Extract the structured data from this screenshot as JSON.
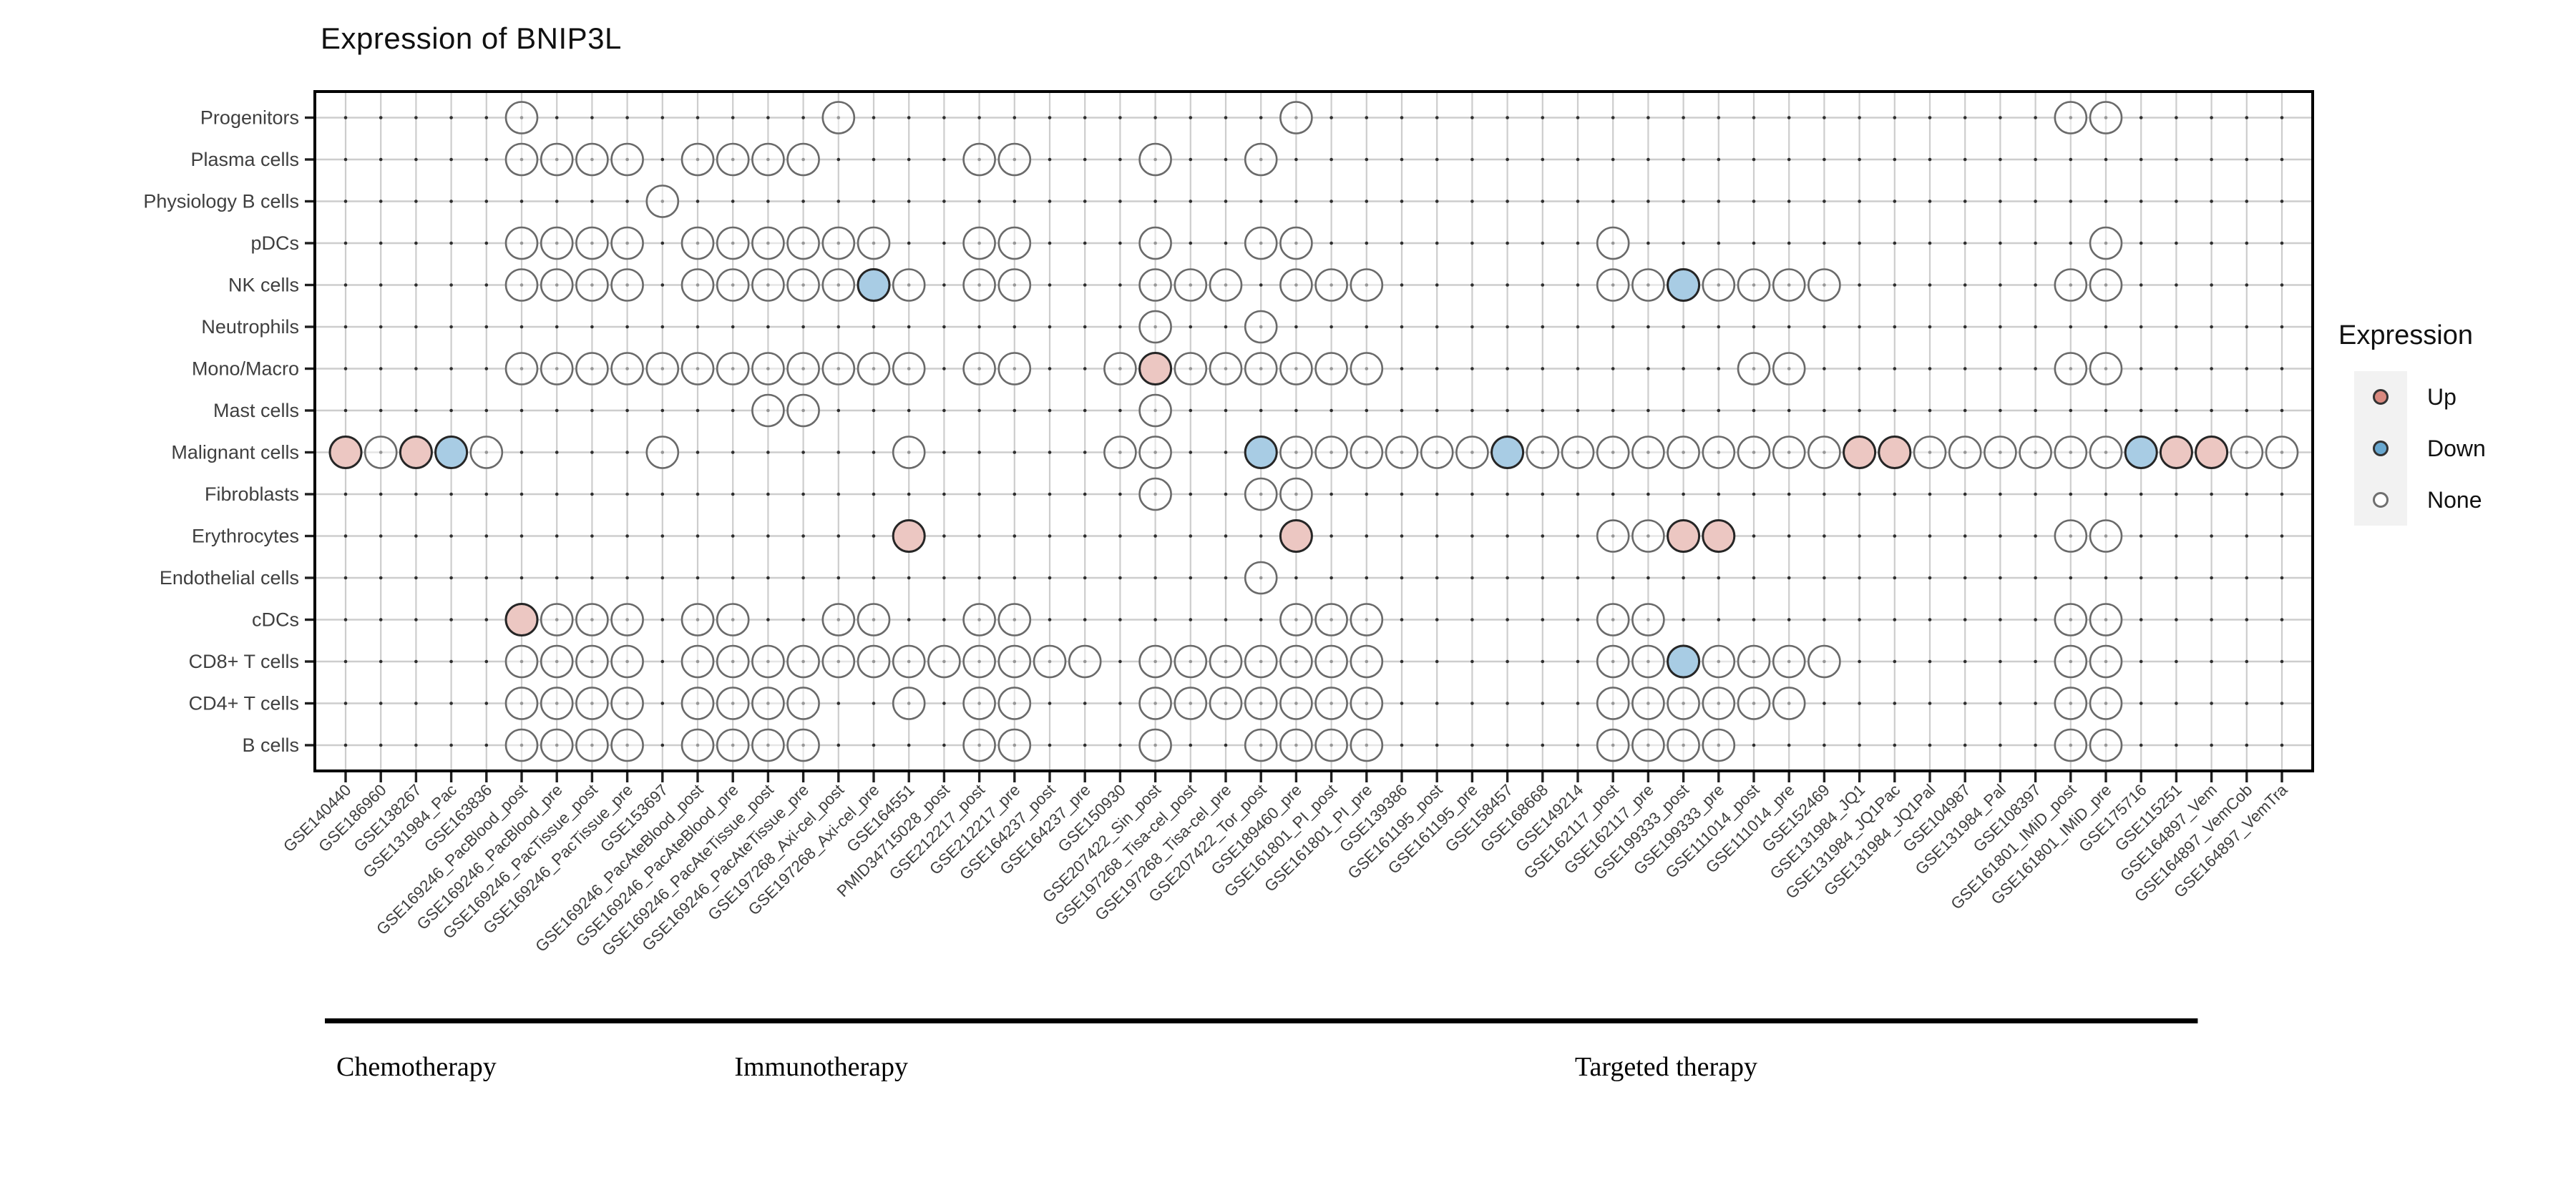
{
  "title": "Expression of BNIP3L",
  "legend": {
    "title": "Expression",
    "items": [
      {
        "label": "Up",
        "color": "#d9897f"
      },
      {
        "label": "Down",
        "color": "#69a8d0"
      },
      {
        "label": "None",
        "color": "#ffffff"
      }
    ]
  },
  "chart_data": {
    "type": "scatter",
    "subtype": "dot-matrix",
    "title": "Expression of BNIP3L",
    "legend_title": "Expression",
    "value_domain": [
      "Up",
      "Down",
      "None"
    ],
    "colors": {
      "up_fill": "#ecc7c2",
      "down_fill": "#a8cce4",
      "none_fill": "#ffffff",
      "up_legend": "#d9897f",
      "down_legend": "#69a8d0",
      "grid": "#cdcdcd",
      "grid_dot": "#2f2f2f",
      "axis_text": "#3f3f3f",
      "panel_border": "#000000"
    },
    "x_categories": [
      "GSE140440",
      "GSE186960",
      "GSE138267",
      "GSE131984_Pac",
      "GSE163836",
      "GSE169246_PacBlood_post",
      "GSE169246_PacBlood_pre",
      "GSE169246_PacTissue_post",
      "GSE169246_PacTissue_pre",
      "GSE153697",
      "GSE169246_PacAteBlood_post",
      "GSE169246_PacAteBlood_pre",
      "GSE169246_PacAteTissue_post",
      "GSE169246_PacAteTissue_pre",
      "GSE197268_Axi-cel_post",
      "GSE197268_Axi-cel_pre",
      "GSE164551",
      "PMID34715028_post",
      "GSE212217_post",
      "GSE212217_pre",
      "GSE164237_post",
      "GSE164237_pre",
      "GSE150930",
      "GSE207422_Sin_post",
      "GSE197268_Tisa-cel_post",
      "GSE197268_Tisa-cel_pre",
      "GSE207422_Tor_post",
      "GSE189460_pre",
      "GSE161801_PI_post",
      "GSE161801_PI_pre",
      "GSE139386",
      "GSE161195_post",
      "GSE161195_pre",
      "GSE158457",
      "GSE168668",
      "GSE149214",
      "GSE162117_post",
      "GSE162117_pre",
      "GSE199333_post",
      "GSE199333_pre",
      "GSE111014_post",
      "GSE111014_pre",
      "GSE152469",
      "GSE131984_JQ1",
      "GSE131984_JQ1Pac",
      "GSE131984_JQ1Pal",
      "GSE104987",
      "GSE131984_Pal",
      "GSE108397",
      "GSE161801_IMiD_post",
      "GSE161801_IMiD_pre",
      "GSE175716",
      "GSE115251",
      "GSE164897_Vem",
      "GSE164897_VemCob",
      "GSE164897_VemTra"
    ],
    "y_categories": [
      "Progenitors",
      "Plasma cells",
      "Physiology B cells",
      "pDCs",
      "NK cells",
      "Neutrophils",
      "Mono/Macro",
      "Mast cells",
      "Malignant cells",
      "Fibroblasts",
      "Erythrocytes",
      "Endothelial cells",
      "cDCs",
      "CD8+ T cells",
      "CD4+ T cells",
      "B cells"
    ],
    "x_groups": [
      {
        "label": "Chemotherapy",
        "from": 1,
        "to": 5
      },
      {
        "label": "Immunotherapy",
        "from": 6,
        "to": 23
      },
      {
        "label": "Targeted therapy",
        "from": 24,
        "to": 53
      }
    ],
    "rows": [
      {
        "cell_type": "Progenitors",
        "up": [],
        "down": [],
        "none": [
          6,
          15,
          28,
          50,
          51
        ]
      },
      {
        "cell_type": "Plasma cells",
        "up": [],
        "down": [],
        "none": [
          6,
          7,
          8,
          9,
          11,
          12,
          13,
          14,
          19,
          20,
          24,
          27
        ]
      },
      {
        "cell_type": "Physiology B cells",
        "up": [],
        "down": [],
        "none": [
          10
        ]
      },
      {
        "cell_type": "pDCs",
        "up": [],
        "down": [],
        "none": [
          6,
          7,
          8,
          9,
          11,
          12,
          13,
          14,
          15,
          16,
          19,
          20,
          24,
          27,
          28,
          37,
          51
        ]
      },
      {
        "cell_type": "NK cells",
        "up": [],
        "down": [
          16,
          39
        ],
        "none": [
          6,
          7,
          8,
          9,
          11,
          12,
          13,
          14,
          15,
          17,
          19,
          20,
          24,
          25,
          26,
          28,
          29,
          30,
          37,
          38,
          40,
          41,
          42,
          43,
          50,
          51
        ]
      },
      {
        "cell_type": "Neutrophils",
        "up": [],
        "down": [],
        "none": [
          24,
          27
        ]
      },
      {
        "cell_type": "Mono/Macro",
        "up": [
          24
        ],
        "down": [],
        "none": [
          6,
          7,
          8,
          9,
          10,
          11,
          12,
          13,
          14,
          15,
          16,
          17,
          19,
          20,
          23,
          25,
          26,
          27,
          28,
          29,
          30,
          41,
          42,
          50,
          51
        ]
      },
      {
        "cell_type": "Mast cells",
        "up": [],
        "down": [],
        "none": [
          13,
          14,
          24
        ]
      },
      {
        "cell_type": "Malignant cells",
        "up": [
          1,
          3,
          44,
          45,
          53,
          54
        ],
        "down": [
          4,
          27,
          34,
          52
        ],
        "none": [
          2,
          5,
          10,
          17,
          23,
          24,
          28,
          29,
          30,
          31,
          32,
          33,
          35,
          36,
          37,
          38,
          39,
          40,
          41,
          42,
          43,
          46,
          47,
          48,
          49,
          50,
          51,
          55,
          56
        ]
      },
      {
        "cell_type": "Fibroblasts",
        "up": [],
        "down": [],
        "none": [
          24,
          27,
          28
        ]
      },
      {
        "cell_type": "Erythrocytes",
        "up": [
          17,
          28,
          39,
          40
        ],
        "down": [],
        "none": [
          37,
          38,
          50,
          51
        ]
      },
      {
        "cell_type": "Endothelial cells",
        "up": [],
        "down": [],
        "none": [
          27
        ]
      },
      {
        "cell_type": "cDCs",
        "up": [
          6
        ],
        "down": [],
        "none": [
          7,
          8,
          9,
          11,
          12,
          15,
          16,
          19,
          20,
          28,
          29,
          30,
          37,
          38,
          50,
          51
        ]
      },
      {
        "cell_type": "CD8+ T cells",
        "up": [],
        "down": [
          39
        ],
        "none": [
          6,
          7,
          8,
          9,
          11,
          12,
          13,
          14,
          15,
          16,
          17,
          18,
          19,
          20,
          21,
          22,
          24,
          25,
          26,
          27,
          28,
          29,
          30,
          37,
          38,
          40,
          41,
          42,
          43,
          50,
          51
        ]
      },
      {
        "cell_type": "CD4+ T cells",
        "up": [],
        "down": [],
        "none": [
          6,
          7,
          8,
          9,
          11,
          12,
          13,
          14,
          17,
          19,
          20,
          24,
          25,
          26,
          27,
          28,
          29,
          30,
          37,
          38,
          39,
          40,
          41,
          42,
          50,
          51
        ]
      },
      {
        "cell_type": "B cells",
        "up": [],
        "down": [],
        "none": [
          6,
          7,
          8,
          9,
          11,
          12,
          13,
          14,
          19,
          20,
          24,
          27,
          28,
          29,
          30,
          37,
          38,
          39,
          40,
          50,
          51
        ]
      }
    ]
  }
}
